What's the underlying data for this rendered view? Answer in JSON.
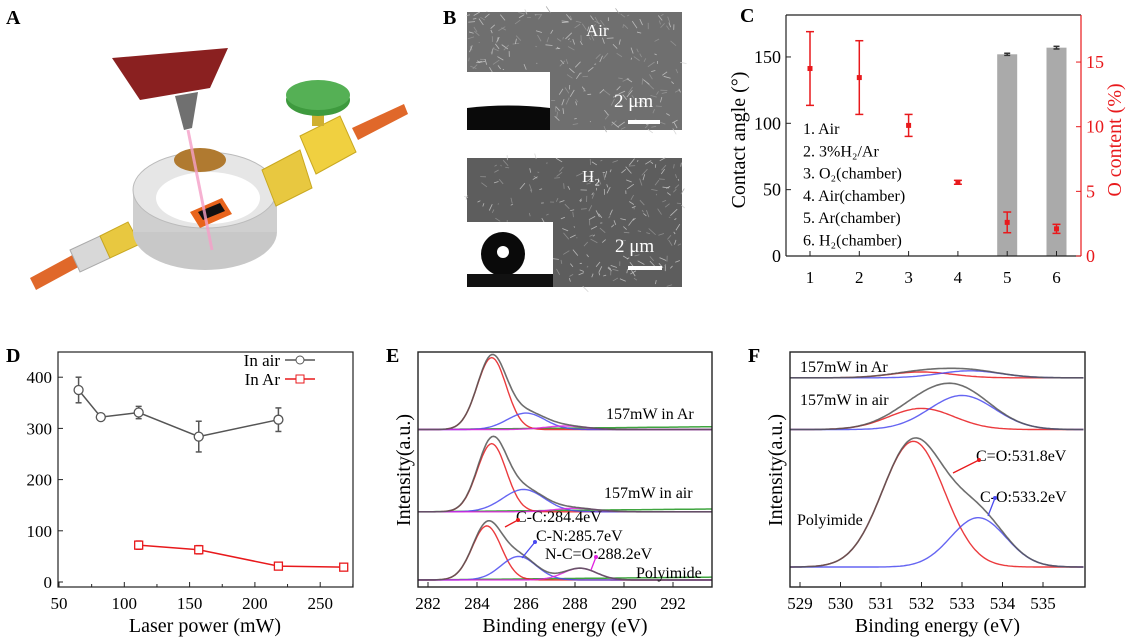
{
  "panels": {
    "A": {
      "label": "A"
    },
    "B": {
      "label": "B",
      "top_title": "Air",
      "bottom_title": "H₂",
      "scale_bar_top": "2 μm",
      "scale_bar_bottom": "2 μm"
    },
    "C": {
      "label": "C"
    },
    "D": {
      "label": "D"
    },
    "E": {
      "label": "E"
    },
    "F": {
      "label": "F"
    }
  },
  "colors": {
    "red": "#e8191c",
    "gray_series": "#555555",
    "bar": "#aaaaaa",
    "blue": "#4a4af0",
    "magenta": "#e020e0",
    "green": "#3fa53f",
    "black": "#222222"
  },
  "chart_data": [
    {
      "panel": "C",
      "type": "bar+scatter",
      "categories": [
        "1",
        "2",
        "3",
        "4",
        "5",
        "6"
      ],
      "legend_entries": [
        "1. Air",
        "2. 3%H₂/Ar",
        "3. O₂(chamber)",
        "4. Air(chamber)",
        "5. Ar(chamber)",
        "6. H₂(chamber)"
      ],
      "y_left": {
        "label": "Contact angle (°)",
        "ticks": [
          0,
          50,
          100,
          150
        ],
        "range": [
          0,
          180
        ]
      },
      "y_right": {
        "label": "O content (%)",
        "ticks": [
          0,
          5,
          10,
          15
        ],
        "range": [
          0,
          18.5
        ]
      },
      "contact_angle": {
        "values": [
          null,
          null,
          null,
          null,
          152,
          157
        ],
        "errors": [
          null,
          null,
          null,
          null,
          0.8,
          1.0
        ]
      },
      "o_content": {
        "values": [
          14.5,
          13.8,
          10.1,
          5.7,
          2.6,
          2.1
        ],
        "errors": [
          2.85,
          2.85,
          0.85,
          0.15,
          0.8,
          0.35
        ]
      }
    },
    {
      "panel": "D",
      "type": "line",
      "xlabel": "Laser power (mW)",
      "ylabel": "",
      "xlim": [
        50,
        275
      ],
      "ylim": [
        -10,
        450
      ],
      "xticks": [
        50,
        100,
        150,
        200,
        250
      ],
      "yticks": [
        0,
        100,
        200,
        300,
        400
      ],
      "legend_placement": "top-right",
      "series": [
        {
          "name": "In air",
          "marker": "circle",
          "x": [
            65,
            82,
            111,
            157,
            218
          ],
          "y": [
            375,
            322,
            331,
            284,
            317
          ],
          "errors": [
            25,
            5,
            12,
            30,
            23
          ]
        },
        {
          "name": "In Ar",
          "marker": "square",
          "x": [
            111,
            157,
            218,
            268
          ],
          "y": [
            72,
            63,
            31,
            29
          ],
          "errors": [
            8,
            8,
            5,
            4
          ]
        }
      ]
    },
    {
      "panel": "E",
      "type": "line",
      "xlabel": "Binding energy (eV)",
      "ylabel": "Intensity(a.u.)",
      "xlim": [
        281.6,
        293.6
      ],
      "xticks": [
        282,
        284,
        286,
        288,
        290,
        292
      ],
      "spectra": [
        {
          "name": "157mW in Ar",
          "baseline": 6.7,
          "components": [
            {
              "center": 284.6,
              "amplitude": 3.06,
              "fwhm": 1.4
            },
            {
              "center": 286.0,
              "amplitude": 0.7,
              "fwhm": 1.8
            },
            {
              "center": 287.6,
              "amplitude": 0.15,
              "fwhm": 2.0
            }
          ]
        },
        {
          "name": "157mW in air",
          "baseline": 3.2,
          "components": [
            {
              "center": 284.6,
              "amplitude": 2.9,
              "fwhm": 1.4
            },
            {
              "center": 285.9,
              "amplitude": 0.95,
              "fwhm": 2.0
            },
            {
              "center": 288.0,
              "amplitude": 0.15,
              "fwhm": 2.0
            }
          ]
        },
        {
          "name": "Polyimide",
          "baseline": 0.3,
          "components": [
            {
              "center": 284.4,
              "amplitude": 2.3,
              "fwhm": 1.4
            },
            {
              "center": 285.7,
              "amplitude": 1.0,
              "fwhm": 1.7
            },
            {
              "center": 288.2,
              "amplitude": 0.5,
              "fwhm": 1.6
            }
          ]
        }
      ],
      "annotations": [
        "C-C:284.4eV",
        "C-N:285.7eV",
        "N-C=O:288.2eV"
      ]
    },
    {
      "panel": "F",
      "type": "line",
      "xlabel": "Binding energy (eV)",
      "ylabel": "Intensity(a.u.)",
      "xlim": [
        528.75,
        536.0
      ],
      "xticks": [
        529,
        530,
        531,
        532,
        533,
        534,
        535
      ],
      "spectra": [
        {
          "name": "157mW in Ar",
          "baseline": 8.9,
          "components": [
            {
              "center": 532.0,
              "amplitude": 0.25,
              "fwhm": 1.8
            },
            {
              "center": 533.2,
              "amplitude": 0.3,
              "fwhm": 1.8
            }
          ]
        },
        {
          "name": "157mW in air",
          "baseline": 6.7,
          "components": [
            {
              "center": 532.0,
              "amplitude": 0.9,
              "fwhm": 1.9
            },
            {
              "center": 533.0,
              "amplitude": 1.45,
              "fwhm": 1.9
            }
          ]
        },
        {
          "name": "Polyimide",
          "baseline": 0.85,
          "components": [
            {
              "center": 531.8,
              "amplitude": 5.35,
              "fwhm": 1.8
            },
            {
              "center": 533.4,
              "amplitude": 2.1,
              "fwhm": 1.6
            }
          ]
        }
      ],
      "annotations": [
        "C=O:531.8eV",
        "C-O:533.2eV"
      ]
    }
  ]
}
